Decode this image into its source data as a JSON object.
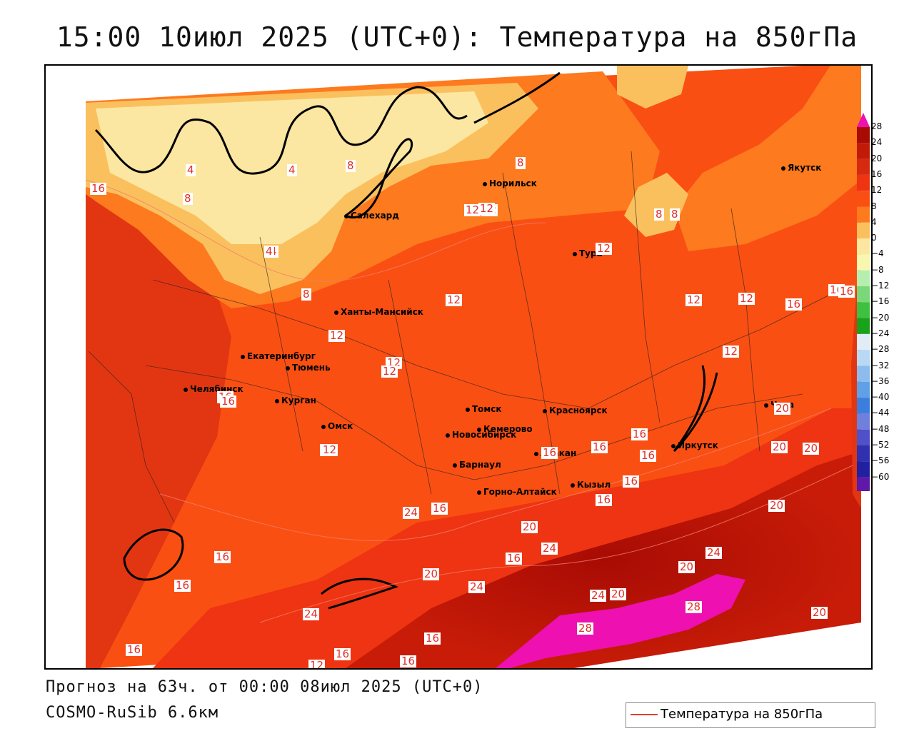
{
  "title": "15:00 10июл 2025 (UTC+0): Температура на 850гПа",
  "forecast_line": "Прогноз на 63ч. от 00:00 08июл 2025 (UTC+0)",
  "model_line": "COSMO-RuSib 6.6км",
  "legend_key_label": "Температура на 850гПа",
  "colors": {
    "t0_4": "#fbe7a1",
    "t4_8": "#fbc05e",
    "t8_12": "#fd7a1e",
    "t12_16": "#fa4f12",
    "t16_20": "#ee3412",
    "t20_24": "#d62a10",
    "t24_28": "#a80b04",
    "t28": "#ee10b0",
    "isoline": "#e83a30"
  },
  "legend_ticks": [
    "28",
    "24",
    "20",
    "16",
    "12",
    "8",
    "4",
    "0",
    "−4",
    "−8",
    "−12",
    "−16",
    "−20",
    "−24",
    "−28",
    "−32",
    "−36",
    "−40",
    "−44",
    "−48",
    "−52",
    "−56",
    "−60"
  ],
  "legend_colors": [
    "#a80b04",
    "#c21a08",
    "#d62a10",
    "#ee3412",
    "#fa4f12",
    "#fd7a1e",
    "#fbc05e",
    "#fbe7a1",
    "#f7f7b0",
    "#b6eeb0",
    "#7ad87a",
    "#3fc040",
    "#1aa21a",
    "#e0ecf8",
    "#b8d8f4",
    "#8cbcee",
    "#5fa0e6",
    "#3c7ede",
    "#6f7fdc",
    "#5050c8",
    "#3030b0",
    "#2020a0",
    "#6018a8"
  ],
  "cities": [
    {
      "name": "Норильск"
    },
    {
      "name": "Якутск"
    },
    {
      "name": "Салехард"
    },
    {
      "name": "Тура"
    },
    {
      "name": "Ханты-Мансийск"
    },
    {
      "name": "Екатеринбург"
    },
    {
      "name": "Тюмень"
    },
    {
      "name": "Челябинск"
    },
    {
      "name": "Курган"
    },
    {
      "name": "Омск"
    },
    {
      "name": "Новосибирск"
    },
    {
      "name": "Томск"
    },
    {
      "name": "Кемерово"
    },
    {
      "name": "Красноярск"
    },
    {
      "name": "Абакан"
    },
    {
      "name": "Барнаул"
    },
    {
      "name": "Горно-Алтайск"
    },
    {
      "name": "Кызыл"
    },
    {
      "name": "Иркутск"
    },
    {
      "name": "Чита"
    }
  ],
  "isotherm_labels": [
    "16",
    "4",
    "8",
    "4",
    "8",
    "4",
    "8",
    "12",
    "8",
    "8",
    "12",
    "12",
    "12",
    "16",
    "12",
    "12",
    "12",
    "16",
    "12",
    "16",
    "12",
    "12",
    "20",
    "16",
    "16",
    "16",
    "20",
    "16",
    "16",
    "16",
    "24",
    "24",
    "24",
    "20",
    "16",
    "20",
    "24",
    "24",
    "20",
    "16",
    "28",
    "28",
    "20",
    "20",
    "16",
    "16",
    "12",
    "16",
    "20",
    "16",
    "16",
    "16",
    "24",
    "20",
    "4",
    "12",
    "16",
    "12",
    "12",
    "16",
    "8"
  ]
}
